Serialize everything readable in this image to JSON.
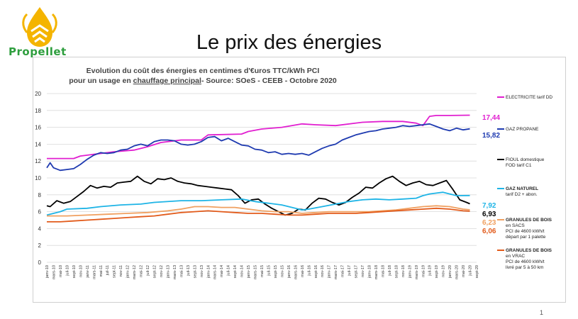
{
  "brand": {
    "name": "Propellet"
  },
  "slide": {
    "title": "Le prix des énergies",
    "page_number": "1"
  },
  "chart_data": {
    "type": "line",
    "title_line1": "Evolution du coût des énergies en centimes d'€uros TTC/kWh PCI",
    "title_line2_a": "pour un usage en ",
    "title_line2_u": "chauffage principal",
    "title_line2_b": "- Source: SOeS - CEEB - Octobre 2020",
    "ylim": [
      0,
      20
    ],
    "yticks": [
      0,
      2,
      4,
      6,
      8,
      10,
      12,
      14,
      16,
      18,
      20
    ],
    "grid": "horizontal",
    "legend_position": "right",
    "x_start": "janv-10",
    "x_end": "sept-20",
    "x_ticks": [
      "janv-10",
      "mars-10",
      "mai-10",
      "juil-10",
      "sept-10",
      "nov-10",
      "janv-11",
      "mars-11",
      "mai-11",
      "juil-11",
      "sept-11",
      "nov-11",
      "janv-12",
      "mars-12",
      "mai-12",
      "juil-12",
      "sept-12",
      "nov-12",
      "janv-13",
      "mars-13",
      "mai-13",
      "juil-13",
      "sept-13",
      "nov-13",
      "janv-14",
      "mars-14",
      "mai-14",
      "juil-14",
      "sept-14",
      "nov-14",
      "janv-15",
      "mars-15",
      "mai-15",
      "juil-15",
      "sept-15",
      "nov-15",
      "janv-16",
      "mars-16",
      "mai-16",
      "juil-16",
      "sept-16",
      "nov-16",
      "janv-17",
      "mars-17",
      "mai-17",
      "juil-17",
      "sept-17",
      "nov-17",
      "janv-18",
      "mars-18",
      "mai-18",
      "juil-18",
      "sept-18",
      "nov-18",
      "janv-19",
      "mars-19",
      "mai-19",
      "juil-19",
      "sept-19",
      "nov-19",
      "janv-20",
      "mars-20",
      "mai-20",
      "juil-20",
      "sept-20"
    ],
    "series": [
      {
        "key": "elec",
        "color": "#e11fd0",
        "legend": [
          "ELECTRICITE tarif DD"
        ],
        "end_label": "17,44",
        "points": [
          [
            0,
            12.3
          ],
          [
            8,
            12.3
          ],
          [
            10,
            12.6
          ],
          [
            14,
            12.8
          ],
          [
            20,
            13.1
          ],
          [
            26,
            13.3
          ],
          [
            30,
            13.7
          ],
          [
            34,
            14.2
          ],
          [
            40,
            14.5
          ],
          [
            46,
            14.5
          ],
          [
            48,
            15.1
          ],
          [
            58,
            15.2
          ],
          [
            60,
            15.5
          ],
          [
            64,
            15.8
          ],
          [
            70,
            16.0
          ],
          [
            76,
            16.4
          ],
          [
            80,
            16.3
          ],
          [
            86,
            16.2
          ],
          [
            94,
            16.6
          ],
          [
            100,
            16.7
          ],
          [
            106,
            16.7
          ],
          [
            110,
            16.5
          ],
          [
            112,
            16.2
          ],
          [
            114,
            17.3
          ],
          [
            116,
            17.4
          ],
          [
            120,
            17.4
          ],
          [
            126,
            17.44
          ]
        ]
      },
      {
        "key": "gaz",
        "color": "#1e3ab0",
        "legend": [
          "GAZ PROPANE"
        ],
        "end_label": "15,82",
        "points": [
          [
            0,
            11.2
          ],
          [
            1,
            11.8
          ],
          [
            2,
            11.2
          ],
          [
            4,
            10.9
          ],
          [
            6,
            11.0
          ],
          [
            8,
            11.1
          ],
          [
            10,
            11.6
          ],
          [
            12,
            12.2
          ],
          [
            14,
            12.7
          ],
          [
            16,
            13.0
          ],
          [
            18,
            12.9
          ],
          [
            20,
            13.0
          ],
          [
            22,
            13.3
          ],
          [
            24,
            13.4
          ],
          [
            26,
            13.8
          ],
          [
            28,
            14.0
          ],
          [
            30,
            13.8
          ],
          [
            32,
            14.3
          ],
          [
            34,
            14.5
          ],
          [
            36,
            14.5
          ],
          [
            38,
            14.4
          ],
          [
            40,
            14.0
          ],
          [
            42,
            13.9
          ],
          [
            44,
            14.0
          ],
          [
            46,
            14.3
          ],
          [
            48,
            14.8
          ],
          [
            50,
            14.9
          ],
          [
            52,
            14.4
          ],
          [
            54,
            14.7
          ],
          [
            56,
            14.3
          ],
          [
            58,
            13.9
          ],
          [
            60,
            13.8
          ],
          [
            62,
            13.4
          ],
          [
            64,
            13.3
          ],
          [
            66,
            13.0
          ],
          [
            68,
            13.1
          ],
          [
            70,
            12.8
          ],
          [
            72,
            12.9
          ],
          [
            74,
            12.8
          ],
          [
            76,
            12.9
          ],
          [
            78,
            12.7
          ],
          [
            80,
            13.1
          ],
          [
            82,
            13.5
          ],
          [
            84,
            13.8
          ],
          [
            86,
            14.0
          ],
          [
            88,
            14.5
          ],
          [
            90,
            14.8
          ],
          [
            92,
            15.1
          ],
          [
            94,
            15.3
          ],
          [
            96,
            15.5
          ],
          [
            98,
            15.6
          ],
          [
            100,
            15.8
          ],
          [
            102,
            15.9
          ],
          [
            104,
            16.0
          ],
          [
            106,
            16.2
          ],
          [
            108,
            16.1
          ],
          [
            110,
            16.2
          ],
          [
            112,
            16.3
          ],
          [
            114,
            16.4
          ],
          [
            116,
            16.1
          ],
          [
            118,
            15.8
          ],
          [
            120,
            15.6
          ],
          [
            122,
            15.9
          ],
          [
            124,
            15.7
          ],
          [
            126,
            15.82
          ]
        ]
      },
      {
        "key": "fioul",
        "color": "#000000",
        "legend": [
          "FIOUL domestique",
          "FOD tarif C1"
        ],
        "end_label": "6,93",
        "points": [
          [
            0,
            6.7
          ],
          [
            1,
            6.6
          ],
          [
            3,
            7.3
          ],
          [
            5,
            7.0
          ],
          [
            7,
            7.2
          ],
          [
            9,
            7.8
          ],
          [
            11,
            8.4
          ],
          [
            13,
            9.1
          ],
          [
            15,
            8.8
          ],
          [
            17,
            9.0
          ],
          [
            19,
            8.9
          ],
          [
            21,
            9.4
          ],
          [
            23,
            9.5
          ],
          [
            25,
            9.6
          ],
          [
            27,
            10.2
          ],
          [
            29,
            9.6
          ],
          [
            31,
            9.3
          ],
          [
            33,
            9.9
          ],
          [
            35,
            9.8
          ],
          [
            37,
            10.0
          ],
          [
            39,
            9.6
          ],
          [
            41,
            9.4
          ],
          [
            43,
            9.3
          ],
          [
            45,
            9.1
          ],
          [
            47,
            9.0
          ],
          [
            49,
            8.9
          ],
          [
            51,
            8.8
          ],
          [
            53,
            8.7
          ],
          [
            55,
            8.6
          ],
          [
            57,
            7.9
          ],
          [
            59,
            7.0
          ],
          [
            61,
            7.4
          ],
          [
            63,
            7.5
          ],
          [
            65,
            6.9
          ],
          [
            67,
            6.4
          ],
          [
            69,
            6.0
          ],
          [
            71,
            5.6
          ],
          [
            73,
            5.8
          ],
          [
            75,
            6.3
          ],
          [
            77,
            6.2
          ],
          [
            79,
            7.0
          ],
          [
            81,
            7.6
          ],
          [
            83,
            7.5
          ],
          [
            85,
            7.1
          ],
          [
            87,
            6.8
          ],
          [
            89,
            7.1
          ],
          [
            91,
            7.7
          ],
          [
            93,
            8.2
          ],
          [
            95,
            8.9
          ],
          [
            97,
            8.8
          ],
          [
            99,
            9.4
          ],
          [
            101,
            9.9
          ],
          [
            103,
            10.2
          ],
          [
            105,
            9.6
          ],
          [
            107,
            9.1
          ],
          [
            109,
            9.4
          ],
          [
            111,
            9.6
          ],
          [
            113,
            9.2
          ],
          [
            115,
            9.1
          ],
          [
            117,
            9.4
          ],
          [
            119,
            9.7
          ],
          [
            121,
            8.6
          ],
          [
            123,
            7.4
          ],
          [
            125,
            7.1
          ],
          [
            126,
            6.93
          ]
        ]
      },
      {
        "key": "gaznat",
        "color": "#1eb4e6",
        "legend": [
          "GAZ NATUREL",
          "tarif D2 + abon."
        ],
        "end_label": "7,92",
        "points": [
          [
            0,
            5.6
          ],
          [
            4,
            6.0
          ],
          [
            6,
            6.3
          ],
          [
            12,
            6.4
          ],
          [
            16,
            6.6
          ],
          [
            22,
            6.8
          ],
          [
            28,
            6.9
          ],
          [
            32,
            7.1
          ],
          [
            40,
            7.3
          ],
          [
            46,
            7.3
          ],
          [
            52,
            7.4
          ],
          [
            58,
            7.5
          ],
          [
            62,
            7.2
          ],
          [
            66,
            7.0
          ],
          [
            70,
            6.8
          ],
          [
            74,
            6.4
          ],
          [
            76,
            6.2
          ],
          [
            78,
            6.3
          ],
          [
            82,
            6.6
          ],
          [
            86,
            6.9
          ],
          [
            90,
            7.2
          ],
          [
            94,
            7.4
          ],
          [
            98,
            7.5
          ],
          [
            102,
            7.4
          ],
          [
            106,
            7.5
          ],
          [
            110,
            7.6
          ],
          [
            112,
            7.9
          ],
          [
            114,
            8.1
          ],
          [
            116,
            8.2
          ],
          [
            118,
            8.3
          ],
          [
            120,
            8.1
          ],
          [
            122,
            7.9
          ],
          [
            126,
            7.92
          ]
        ]
      },
      {
        "key": "gsacs",
        "color": "#f0a060",
        "legend": [
          "GRANULES DE BOIS",
          "en SACS",
          "PCI de 4600 kWh/t",
          "départ par 1 palette"
        ],
        "end_label": "6,23",
        "points": [
          [
            0,
            5.5
          ],
          [
            6,
            5.5
          ],
          [
            12,
            5.6
          ],
          [
            18,
            5.7
          ],
          [
            24,
            5.8
          ],
          [
            30,
            5.9
          ],
          [
            36,
            6.1
          ],
          [
            40,
            6.3
          ],
          [
            44,
            6.6
          ],
          [
            48,
            6.6
          ],
          [
            52,
            6.5
          ],
          [
            56,
            6.5
          ],
          [
            60,
            6.3
          ],
          [
            64,
            6.1
          ],
          [
            68,
            6.0
          ],
          [
            72,
            6.0
          ],
          [
            76,
            5.8
          ],
          [
            80,
            5.9
          ],
          [
            84,
            6.0
          ],
          [
            88,
            6.0
          ],
          [
            92,
            6.0
          ],
          [
            96,
            6.0
          ],
          [
            100,
            6.1
          ],
          [
            104,
            6.2
          ],
          [
            108,
            6.4
          ],
          [
            112,
            6.6
          ],
          [
            116,
            6.7
          ],
          [
            120,
            6.6
          ],
          [
            124,
            6.3
          ],
          [
            126,
            6.23
          ]
        ]
      },
      {
        "key": "gvrac",
        "color": "#e25b1b",
        "legend": [
          "GRANULES DE BOIS",
          "en VRAC",
          "PCI de 4600 kWh/t",
          "livré par 5 à 50 km"
        ],
        "end_label": "6,06",
        "points": [
          [
            0,
            4.8
          ],
          [
            4,
            4.8
          ],
          [
            8,
            4.9
          ],
          [
            12,
            5.0
          ],
          [
            16,
            5.1
          ],
          [
            20,
            5.2
          ],
          [
            24,
            5.3
          ],
          [
            28,
            5.4
          ],
          [
            32,
            5.5
          ],
          [
            36,
            5.7
          ],
          [
            40,
            5.9
          ],
          [
            44,
            6.0
          ],
          [
            48,
            6.1
          ],
          [
            52,
            6.0
          ],
          [
            56,
            5.9
          ],
          [
            60,
            5.8
          ],
          [
            64,
            5.8
          ],
          [
            68,
            5.7
          ],
          [
            72,
            5.6
          ],
          [
            76,
            5.6
          ],
          [
            80,
            5.7
          ],
          [
            84,
            5.8
          ],
          [
            88,
            5.8
          ],
          [
            92,
            5.8
          ],
          [
            96,
            5.9
          ],
          [
            100,
            6.0
          ],
          [
            104,
            6.1
          ],
          [
            108,
            6.2
          ],
          [
            112,
            6.3
          ],
          [
            116,
            6.4
          ],
          [
            120,
            6.3
          ],
          [
            124,
            6.1
          ],
          [
            126,
            6.06
          ]
        ]
      }
    ]
  }
}
